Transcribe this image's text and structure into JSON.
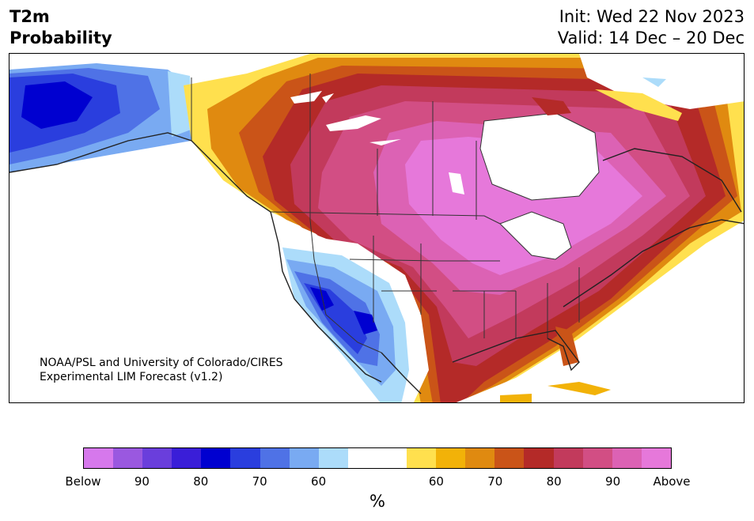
{
  "title": {
    "left_line1": "T2m",
    "left_line2": "Probability",
    "right_line1": "Init: Wed 22 Nov 2023",
    "right_line2": "Valid: 14 Dec – 20 Dec"
  },
  "credit": {
    "line1": "NOAA/PSL and University of Colorado/CIRES",
    "line2": "Experimental LIM Forecast (v1.2)"
  },
  "colorbar": {
    "unit": "%",
    "tick_labels": [
      "Below",
      "90",
      "80",
      "70",
      "60",
      "60",
      "70",
      "80",
      "90",
      "Above"
    ],
    "colors": [
      "#d678ec",
      "#9a58e0",
      "#6a3edc",
      "#3a1ed8",
      "#0000d0",
      "#2a3ede",
      "#4f72e6",
      "#79aaf2",
      "#acdcfa",
      "#ffffff",
      "#ffffff",
      "#ffe04e",
      "#f2b208",
      "#e08a10",
      "#ca5418",
      "#b42a28",
      "#c23a5c",
      "#d24e84",
      "#dc62b4",
      "#e678da"
    ]
  },
  "map": {
    "description_colors": {
      "cold_strong": "#0000d0",
      "warm_strong": "#e678da"
    }
  }
}
